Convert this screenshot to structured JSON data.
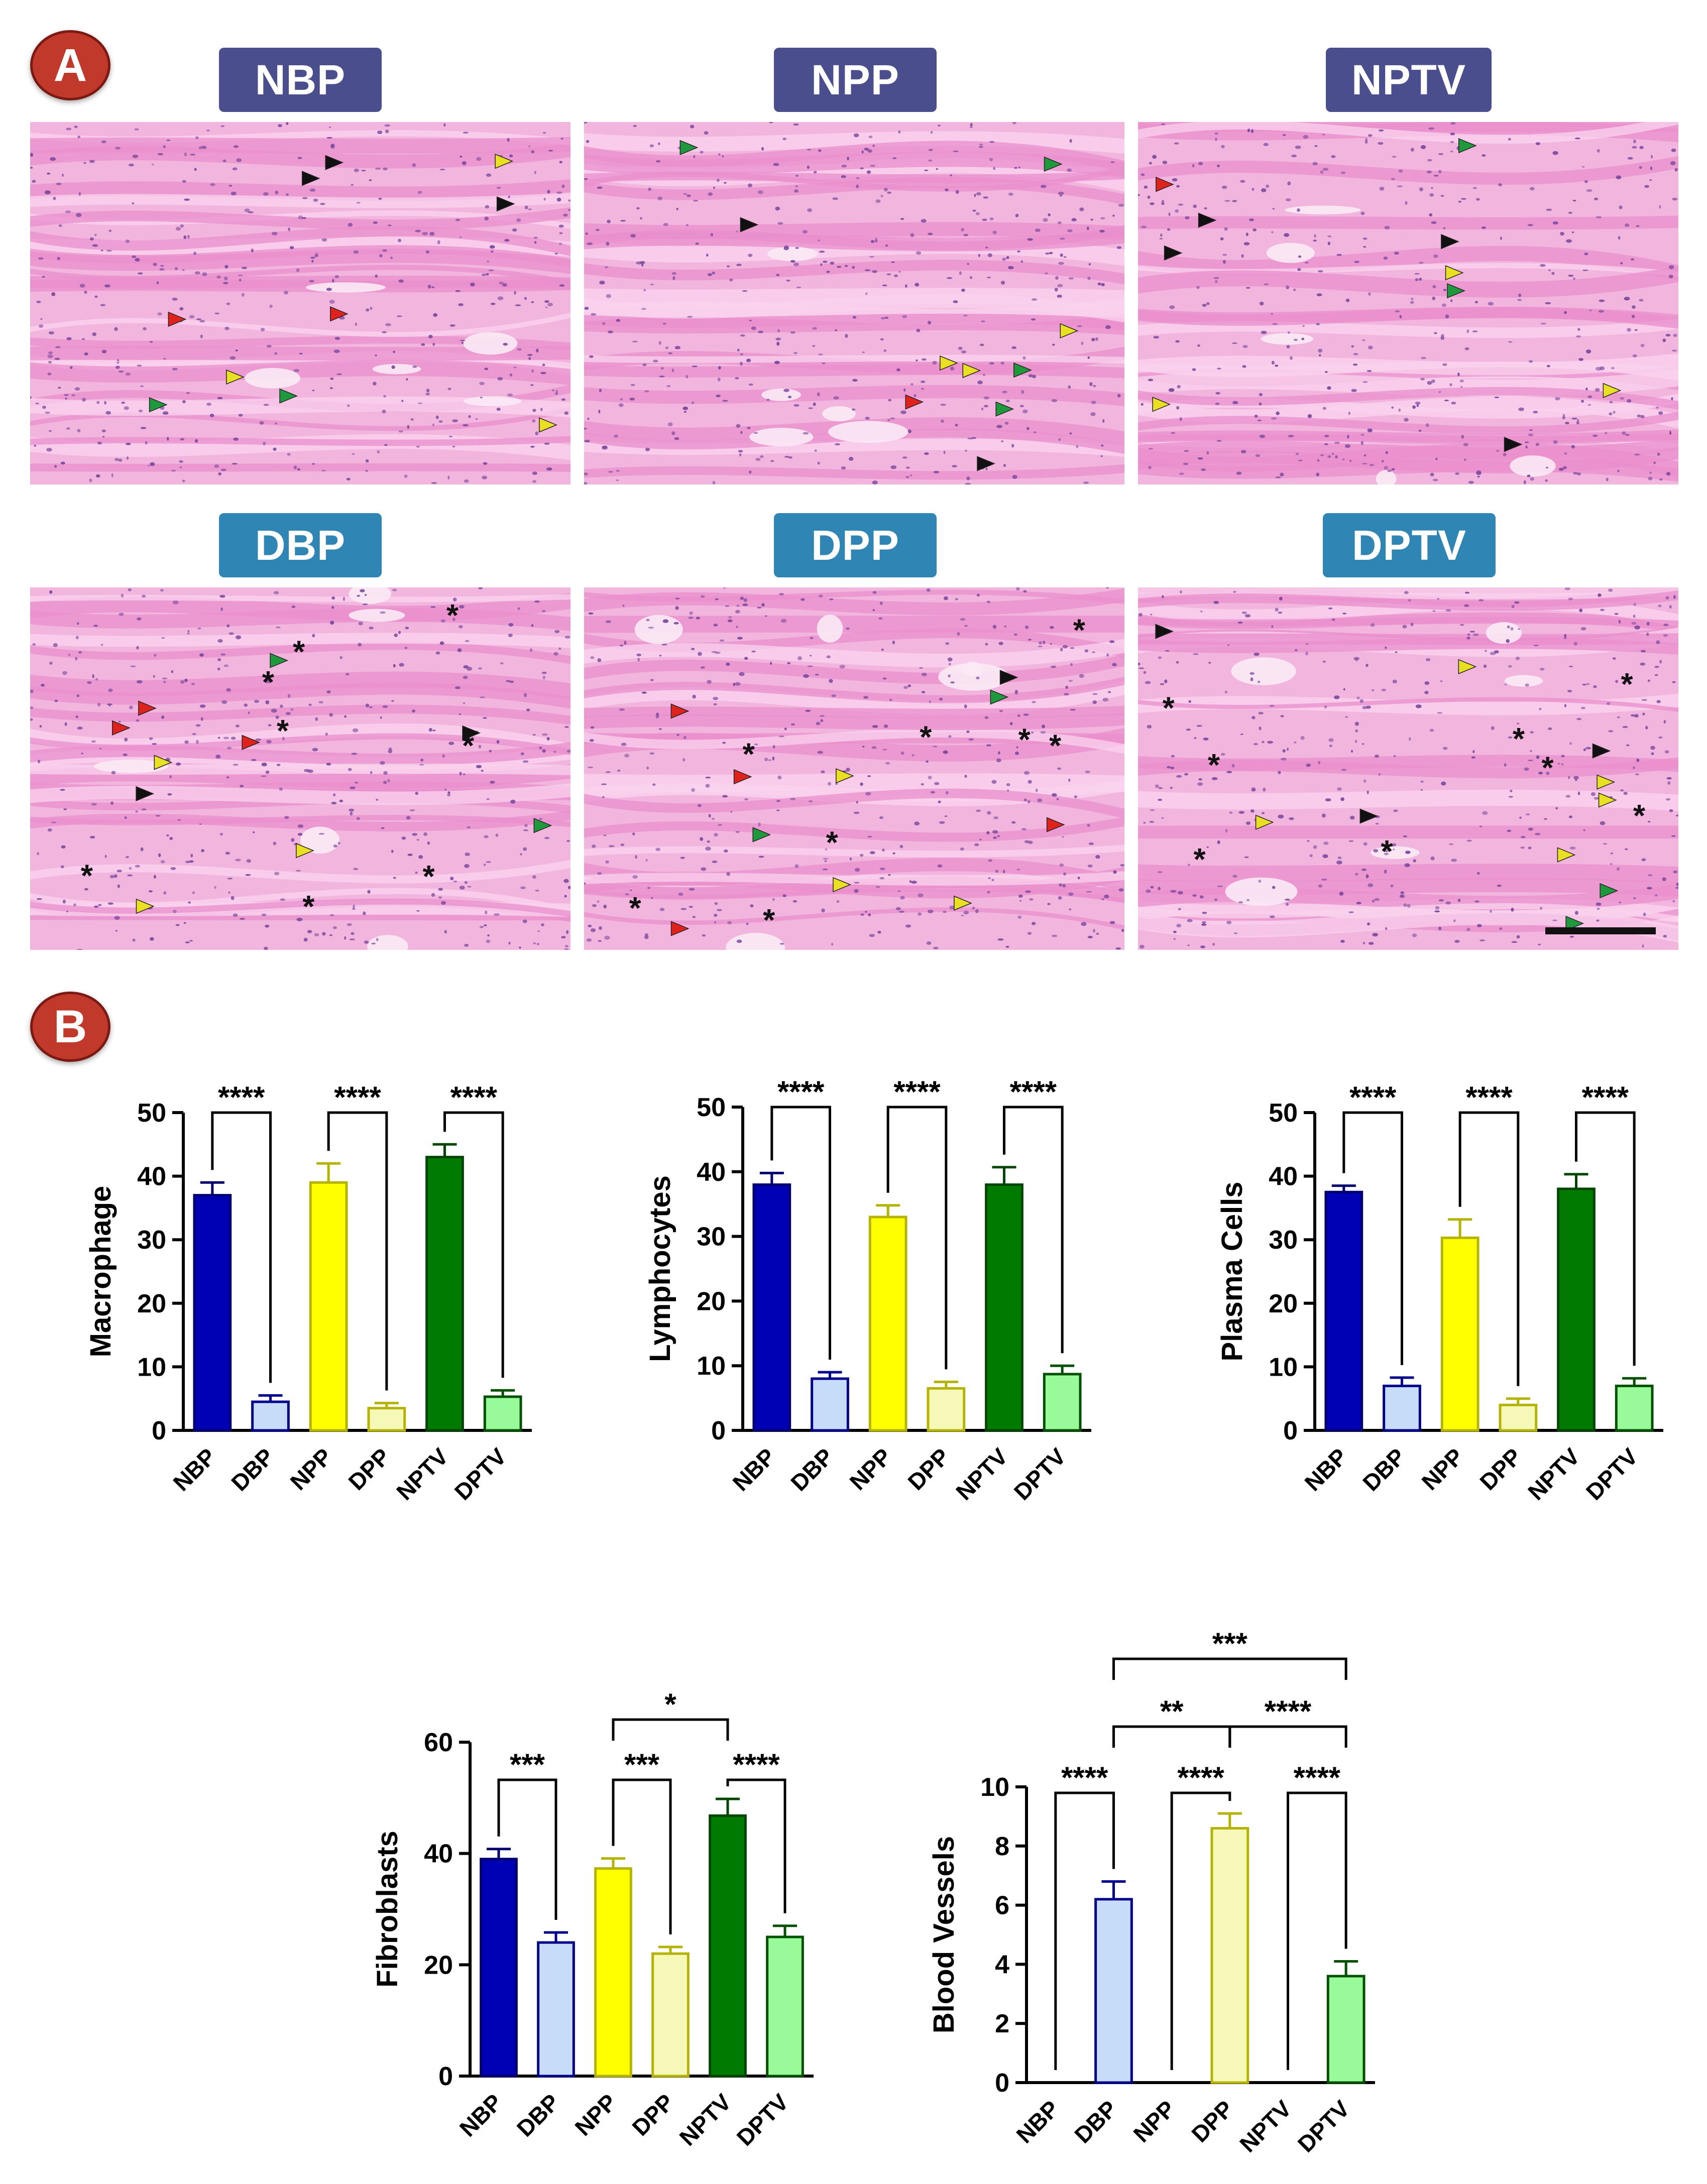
{
  "panel_a": {
    "badge": "A",
    "tiles": [
      {
        "label": "NBP",
        "group": "n"
      },
      {
        "label": "NPP",
        "group": "n"
      },
      {
        "label": "NPTV",
        "group": "n"
      },
      {
        "label": "DBP",
        "group": "d"
      },
      {
        "label": "DPP",
        "group": "d"
      },
      {
        "label": "DPTV",
        "group": "d"
      }
    ]
  },
  "panel_b": {
    "badge": "B"
  },
  "colors": {
    "NBP": "#0000b4",
    "DBP": "#c6dcf8",
    "NPP": "#ffff00",
    "DPP": "#f6f8b8",
    "NPTV": "#007a00",
    "DPTV": "#98fa98",
    "tissue": "#f0a8d8",
    "nuclei": "#6a3c8e"
  },
  "chart_data": [
    {
      "type": "bar",
      "ylabel": "Macrophage",
      "categories": [
        "NBP",
        "DBP",
        "NPP",
        "DPP",
        "NPTV",
        "DPTV"
      ],
      "values": [
        37,
        4.5,
        39,
        3.5,
        43,
        5.3
      ],
      "errors": [
        2,
        1,
        3,
        0.8,
        2,
        1
      ],
      "ylim": [
        0,
        50
      ],
      "yticks": [
        "0",
        "10",
        "20",
        "30",
        "40",
        "50"
      ],
      "significance": [
        {
          "from": 0,
          "to": 1,
          "label": "****"
        },
        {
          "from": 2,
          "to": 3,
          "label": "****"
        },
        {
          "from": 4,
          "to": 5,
          "label": "****"
        }
      ]
    },
    {
      "type": "bar",
      "ylabel": "Lymphocytes",
      "categories": [
        "NBP",
        "DBP",
        "NPP",
        "DPP",
        "NPTV",
        "DPTV"
      ],
      "values": [
        38,
        8,
        33,
        6.5,
        38,
        8.7
      ],
      "errors": [
        1.8,
        1,
        1.8,
        1,
        2.7,
        1.3
      ],
      "ylim": [
        0,
        50
      ],
      "yticks": [
        "0",
        "10",
        "20",
        "30",
        "40",
        "50"
      ],
      "significance": [
        {
          "from": 0,
          "to": 1,
          "label": "****"
        },
        {
          "from": 2,
          "to": 3,
          "label": "****"
        },
        {
          "from": 4,
          "to": 5,
          "label": "****"
        }
      ]
    },
    {
      "type": "bar",
      "ylabel": "Plasma Cells",
      "categories": [
        "NBP",
        "DBP",
        "NPP",
        "DPP",
        "NPTV",
        "DPTV"
      ],
      "values": [
        37.5,
        7,
        30.3,
        4,
        38,
        7
      ],
      "errors": [
        1,
        1.3,
        2.9,
        1,
        2.3,
        1.2
      ],
      "ylim": [
        0,
        50
      ],
      "yticks": [
        "0",
        "10",
        "20",
        "30",
        "40",
        "50"
      ],
      "significance": [
        {
          "from": 0,
          "to": 1,
          "label": "****"
        },
        {
          "from": 2,
          "to": 3,
          "label": "****"
        },
        {
          "from": 4,
          "to": 5,
          "label": "****"
        }
      ]
    },
    {
      "type": "bar",
      "ylabel": "Fibroblasts",
      "categories": [
        "NBP",
        "DBP",
        "NPP",
        "DPP",
        "NPTV",
        "DPTV"
      ],
      "values": [
        39,
        24,
        37.3,
        22,
        46.8,
        25
      ],
      "errors": [
        1.8,
        1.8,
        1.8,
        1.2,
        3,
        2
      ],
      "ylim": [
        0,
        60
      ],
      "yticks": [
        "0",
        "20",
        "40",
        "60"
      ],
      "significance": [
        {
          "from": 0,
          "to": 1,
          "label": "***"
        },
        {
          "from": 2,
          "to": 3,
          "label": "***"
        },
        {
          "from": 4,
          "to": 5,
          "label": "****"
        },
        {
          "from": 2,
          "to": 4,
          "label": "*"
        }
      ]
    },
    {
      "type": "bar",
      "ylabel": "Blood Vessels",
      "categories": [
        "NBP",
        "DBP",
        "NPP",
        "DPP",
        "NPTV",
        "DPTV"
      ],
      "values": [
        0,
        6.2,
        0,
        8.6,
        0,
        3.6
      ],
      "errors": [
        0,
        0.6,
        0,
        0.5,
        0,
        0.5
      ],
      "ylim": [
        0,
        10
      ],
      "yticks": [
        "0",
        "2",
        "4",
        "6",
        "8",
        "10"
      ],
      "significance": [
        {
          "from": 0,
          "to": 1,
          "label": "****"
        },
        {
          "from": 2,
          "to": 3,
          "label": "****"
        },
        {
          "from": 4,
          "to": 5,
          "label": "****"
        },
        {
          "from": 1,
          "to": 3,
          "label": "**"
        },
        {
          "from": 3,
          "to": 5,
          "label": "****"
        },
        {
          "from": 1,
          "to": 5,
          "label": "***"
        }
      ]
    }
  ]
}
